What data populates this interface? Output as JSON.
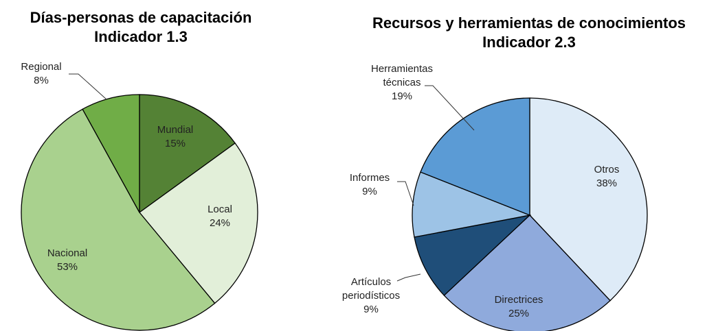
{
  "chart_data": [
    {
      "type": "pie",
      "title": "Días-personas de capacitación",
      "subtitle": "Indicador 1.3",
      "categories": [
        "Mundial",
        "Local",
        "Nacional",
        "Regional"
      ],
      "values": [
        15,
        24,
        53,
        8
      ],
      "value_labels": [
        "15%",
        "24%",
        "53%",
        "8%"
      ],
      "colors": [
        "#548235",
        "#e2efd9",
        "#a9d18e",
        "#70ad47"
      ]
    },
    {
      "type": "pie",
      "title": "Recursos y herramientas de conocimientos",
      "subtitle": "Indicador 2.3",
      "categories": [
        "Otros",
        "Directrices",
        "Artículos periodísticos",
        "Informes",
        "Herramientas técnicas"
      ],
      "values": [
        38,
        25,
        9,
        9,
        19
      ],
      "value_labels": [
        "38%",
        "25%",
        "9%",
        "9%",
        "19%"
      ],
      "colors": [
        "#deebf7",
        "#8faadc",
        "#1f4e79",
        "#9dc3e6",
        "#5b9bd5"
      ]
    }
  ]
}
